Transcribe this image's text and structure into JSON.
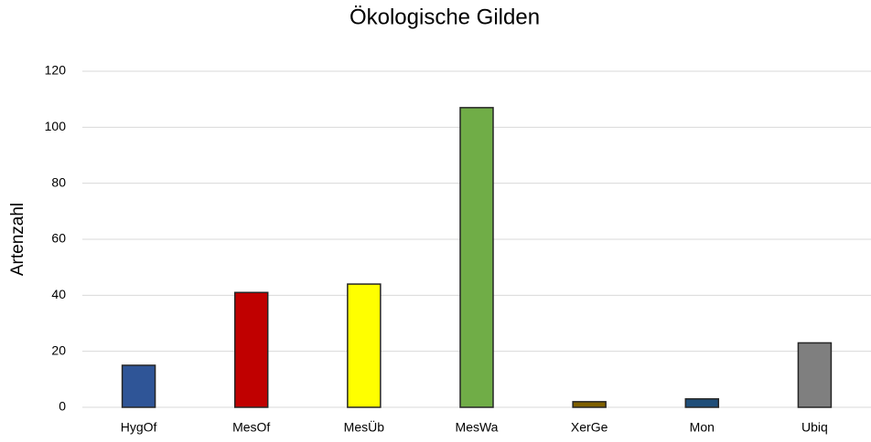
{
  "chart_data": {
    "type": "bar",
    "title": "Ökologische Gilden",
    "y_label": "Artenzahl",
    "categories": [
      "HygOf",
      "MesOf",
      "MesÜb",
      "MesWa",
      "XerGe",
      "Mon",
      "Ubiq"
    ],
    "values": [
      15,
      41,
      44,
      107,
      2,
      3,
      23
    ],
    "colors": [
      "#2f5597",
      "#c00000",
      "#ffff00",
      "#70ad47",
      "#7f6000",
      "#1f4e79",
      "#7f7f7f"
    ],
    "ylim": [
      0,
      120
    ],
    "yticks": [
      0,
      20,
      40,
      60,
      80,
      100,
      120
    ],
    "grid": true
  }
}
